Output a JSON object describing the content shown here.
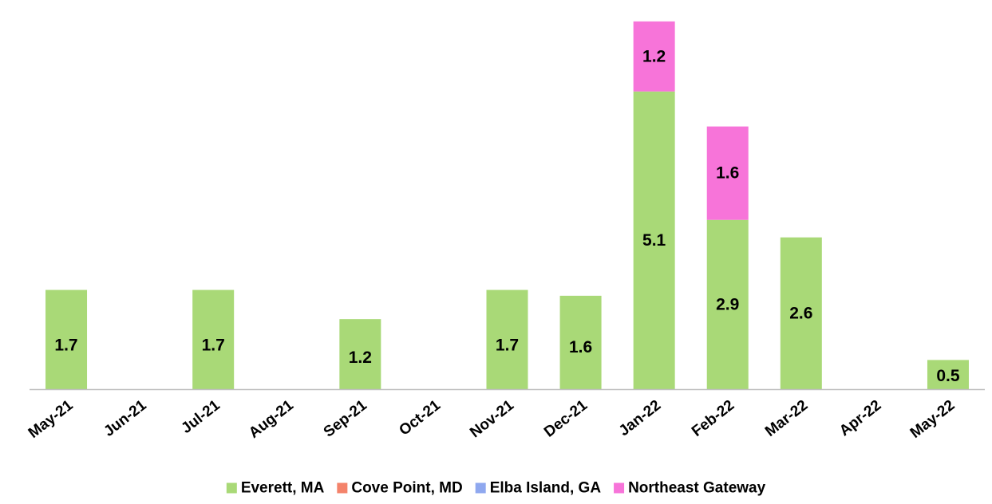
{
  "chart_data": {
    "type": "bar",
    "stacked": true,
    "categories": [
      "May-21",
      "Jun-21",
      "Jul-21",
      "Aug-21",
      "Sep-21",
      "Oct-21",
      "Nov-21",
      "Dec-21",
      "Jan-22",
      "Feb-22",
      "Mar-22",
      "Apr-22",
      "May-22"
    ],
    "series": [
      {
        "name": "Everett, MA",
        "color": "#a9d977",
        "values": [
          1.7,
          0,
          1.7,
          0,
          1.2,
          0,
          1.7,
          1.6,
          5.1,
          2.9,
          2.6,
          0,
          0.5
        ]
      },
      {
        "name": "Cove Point, MD",
        "color": "#f4836b",
        "values": [
          0,
          0,
          0,
          0,
          0,
          0,
          0,
          0,
          0,
          0,
          0,
          0,
          0
        ]
      },
      {
        "name": "Elba Island, GA",
        "color": "#8fa8ef",
        "values": [
          0,
          0,
          0,
          0,
          0,
          0,
          0,
          0,
          0,
          0,
          0,
          0,
          0
        ]
      },
      {
        "name": "Northeast Gateway",
        "color": "#f774d9",
        "values": [
          0,
          0,
          0,
          0,
          0,
          0,
          0,
          0,
          1.2,
          1.6,
          0,
          0,
          0
        ]
      }
    ],
    "ylim": [
      0,
      6.4
    ],
    "grid": false,
    "legend": "bottom",
    "title": "",
    "xlabel": "",
    "ylabel": ""
  }
}
